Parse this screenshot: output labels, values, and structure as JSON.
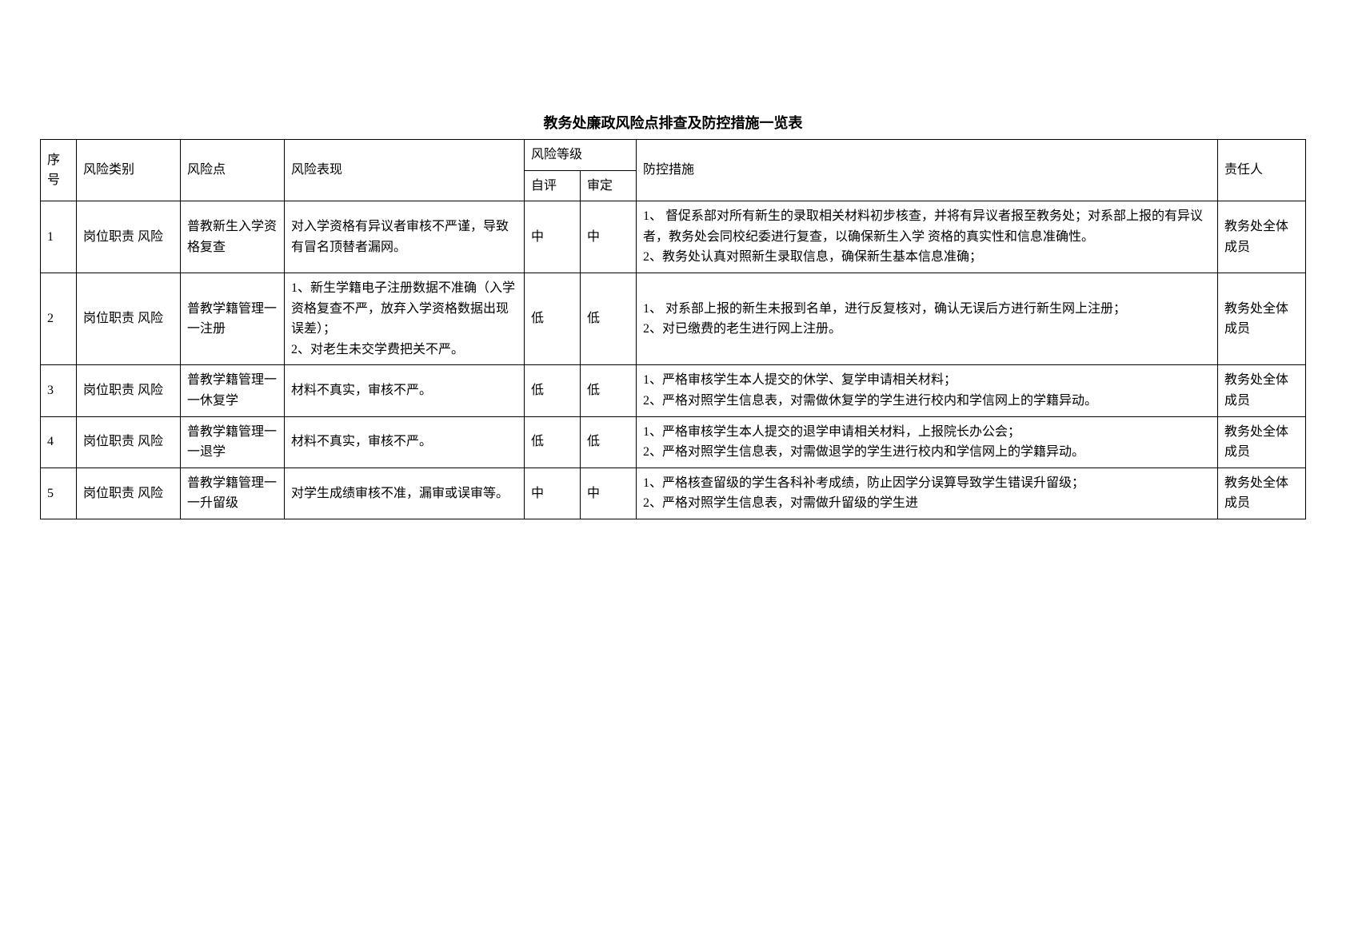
{
  "title": "教务处廉政风险点排查及防控措施一览表",
  "headers": {
    "seq": "序号",
    "category": "风险类别",
    "point": "风险点",
    "manifest": "风险表现",
    "level": "风险等级",
    "self": "自评",
    "review": "审定",
    "measure": "防控措施",
    "resp": "责任人"
  },
  "rows": [
    {
      "seq": "1",
      "category": "岗位职责 风险",
      "point": "普教新生入学资格复查",
      "manifest": "对入学资格有异议者审核不严谨，导致有冒名顶替者漏网。",
      "self": "中",
      "review": "中",
      "measure": "1、 督促系部对所有新生的录取相关材料初步核查，并将有异议者报至教务处；对系部上报的有异议 者，教务处会同校纪委进行复查，以确保新生入学 资格的真实性和信息准确性。\n2、教务处认真对照新生录取信息，确保新生基本信息准确；",
      "resp": "教务处全体成员"
    },
    {
      "seq": "2",
      "category": "岗位职责 风险",
      "point": "普教学籍管理一一注册",
      "manifest": "1、新生学籍电子注册数据不准确（入学资格复查不严，放弃入学资格数据出现误差）；\n2、对老生未交学费把关不严。",
      "self": "低",
      "review": "低",
      "measure": "1、 对系部上报的新生未报到名单，进行反复核对，确认无误后方进行新生网上注册；\n2、对已缴费的老生进行网上注册。",
      "resp": "教务处全体成员"
    },
    {
      "seq": "3",
      "category": "岗位职责 风险",
      "point": "普教学籍管理一一休复学",
      "manifest": "材料不真实，审核不严。",
      "self": "低",
      "review": "低",
      "measure": "1、严格审核学生本人提交的休学、复学申请相关材料；\n2、严格对照学生信息表，对需做休复学的学生进行校内和学信网上的学籍异动。",
      "resp": "教务处全体成员"
    },
    {
      "seq": "4",
      "category": "岗位职责 风险",
      "point": "普教学籍管理一一退学",
      "manifest": "材料不真实，审核不严。",
      "self": "低",
      "review": "低",
      "measure": "1、严格审核学生本人提交的退学申请相关材料，上报院长办公会；\n2、严格对照学生信息表，对需做退学的学生进行校内和学信网上的学籍异动。",
      "resp": "教务处全体成员"
    },
    {
      "seq": "5",
      "category": "岗位职责 风险",
      "point": "普教学籍管理一一升留级",
      "manifest": "对学生成绩审核不准，漏审或误审等。",
      "self": "中",
      "review": "中",
      "measure": "1、严格核查留级的学生各科补考成绩，防止因学分误算导致学生错误升留级；\n2、严格对照学生信息表，对需做升留级的学生进",
      "resp": "教务处全体成员"
    }
  ],
  "style": {
    "background": "#ffffff",
    "border_color": "#000000",
    "font_family": "SimSun",
    "title_fontsize": 18,
    "cell_fontsize": 16
  }
}
